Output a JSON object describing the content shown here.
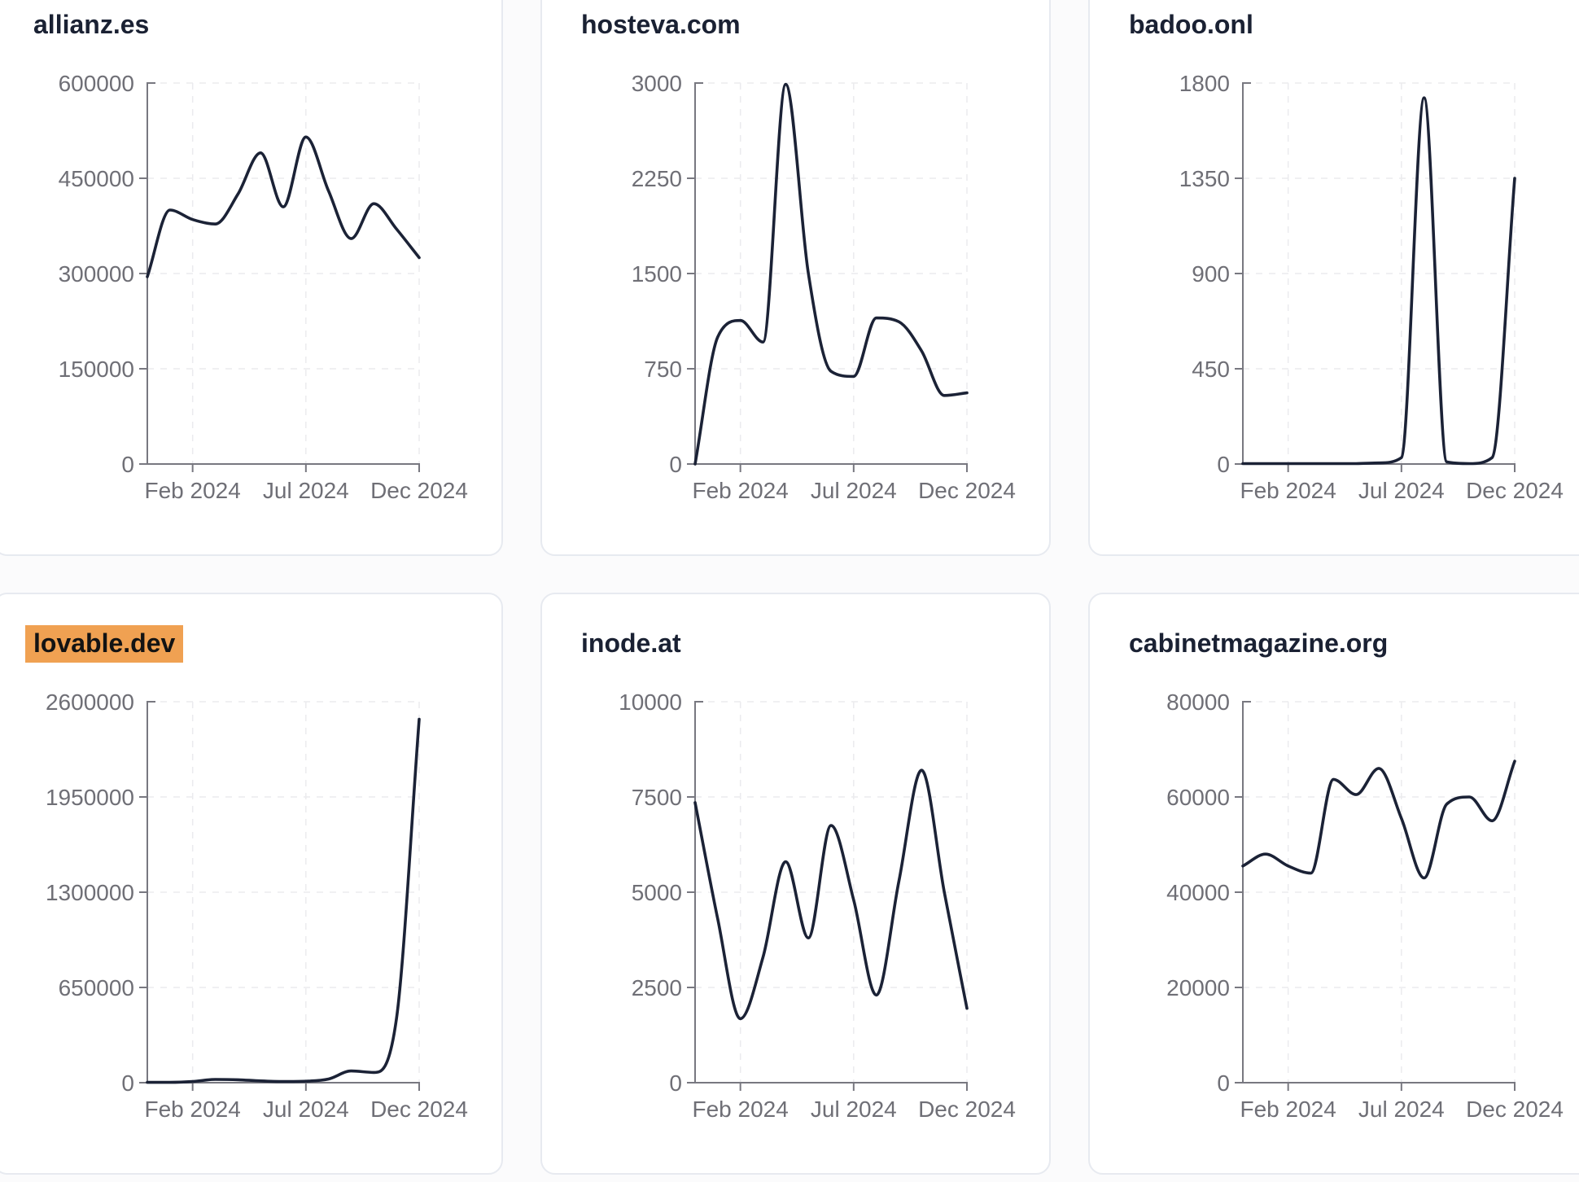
{
  "style": {
    "page_bg": "#fbfbfc",
    "card_bg": "#ffffff",
    "card_border": "#e7eaf0",
    "title_color": "#1a2133",
    "line_color": "#1b2236",
    "tick_label_color": "#6f6f76",
    "axis_color": "#787880",
    "grid_color": "#ebebee",
    "highlight_color": "#f0a152",
    "highlight_text_color": "#131313"
  },
  "chart_data": [
    {
      "type": "line",
      "title": "allianz.es",
      "title_highlighted": false,
      "xlabel": "",
      "ylabel": "",
      "ylim": [
        0,
        600000
      ],
      "y_ticks": [
        0,
        150000,
        300000,
        450000,
        600000
      ],
      "x_tick_labels": [
        "Feb 2024",
        "Jul 2024",
        "Dec 2024"
      ],
      "x_tick_positions": [
        2,
        7,
        12
      ],
      "x_unit": "month index along 2024 (0 = start, 12 = Dec 2024 tick)",
      "grid": "dashed",
      "legend": "none",
      "values": [
        295000,
        400000,
        385000,
        378000,
        425000,
        490000,
        405000,
        515000,
        430000,
        355000,
        410000,
        370000,
        325000
      ]
    },
    {
      "type": "line",
      "title": "hosteva.com",
      "title_highlighted": false,
      "xlabel": "",
      "ylabel": "",
      "ylim": [
        0,
        3000
      ],
      "y_ticks": [
        0,
        750,
        1500,
        2250,
        3000
      ],
      "x_tick_labels": [
        "Feb 2024",
        "Jul 2024",
        "Dec 2024"
      ],
      "x_tick_positions": [
        2,
        7,
        12
      ],
      "x_unit": "month index along 2024 (0 = start, 12 = Dec 2024 tick)",
      "grid": "dashed",
      "legend": "none",
      "values": [
        0,
        1000,
        1130,
        960,
        2990,
        1500,
        730,
        690,
        1150,
        1120,
        890,
        540,
        560
      ]
    },
    {
      "type": "line",
      "title": "badoo.onl",
      "title_highlighted": false,
      "xlabel": "",
      "ylabel": "",
      "ylim": [
        0,
        1800
      ],
      "y_ticks": [
        0,
        450,
        900,
        1350,
        1800
      ],
      "x_tick_labels": [
        "Feb 2024",
        "Jul 2024",
        "Dec 2024"
      ],
      "x_tick_positions": [
        2,
        7,
        12
      ],
      "x_unit": "month index along 2024 (0 = start, 12 = Dec 2024 tick)",
      "grid": "dashed",
      "legend": "none",
      "values": [
        2,
        2,
        2,
        2,
        2,
        2,
        5,
        30,
        1730,
        10,
        2,
        30,
        1350
      ]
    },
    {
      "type": "line",
      "title": "lovable.dev",
      "title_highlighted": true,
      "xlabel": "",
      "ylabel": "",
      "ylim": [
        0,
        2600000
      ],
      "y_ticks": [
        0,
        650000,
        1300000,
        1950000,
        2600000
      ],
      "x_tick_labels": [
        "Feb 2024",
        "Jul 2024",
        "Dec 2024"
      ],
      "x_tick_positions": [
        2,
        7,
        12
      ],
      "x_unit": "month index along 2024 (0 = start, 12 = Dec 2024 tick)",
      "grid": "dashed",
      "legend": "none",
      "values": [
        2000,
        2000,
        8000,
        22000,
        20000,
        12000,
        8000,
        10000,
        25000,
        80000,
        70000,
        440000,
        2480000
      ]
    },
    {
      "type": "line",
      "title": "inode.at",
      "title_highlighted": false,
      "xlabel": "",
      "ylabel": "",
      "ylim": [
        0,
        10000
      ],
      "y_ticks": [
        0,
        2500,
        5000,
        7500,
        10000
      ],
      "x_tick_labels": [
        "Feb 2024",
        "Jul 2024",
        "Dec 2024"
      ],
      "x_tick_positions": [
        2,
        7,
        12
      ],
      "x_unit": "month index along 2024 (0 = start, 12 = Dec 2024 tick)",
      "grid": "dashed",
      "legend": "none",
      "values": [
        7350,
        4300,
        1680,
        3300,
        5800,
        3800,
        6750,
        4800,
        2300,
        5300,
        8200,
        5000,
        1950
      ]
    },
    {
      "type": "line",
      "title": "cabinetmagazine.org",
      "title_highlighted": false,
      "xlabel": "",
      "ylabel": "",
      "ylim": [
        0,
        80000
      ],
      "y_ticks": [
        0,
        20000,
        40000,
        60000,
        80000
      ],
      "x_tick_labels": [
        "Feb 2024",
        "Jul 2024",
        "Dec 2024"
      ],
      "x_tick_positions": [
        2,
        7,
        12
      ],
      "x_unit": "month index along 2024 (0 = start, 12 = Dec 2024 tick)",
      "grid": "dashed",
      "legend": "none",
      "values": [
        45500,
        48000,
        45500,
        44000,
        63700,
        60500,
        66000,
        55500,
        43000,
        58500,
        60000,
        55000,
        67500
      ]
    }
  ]
}
